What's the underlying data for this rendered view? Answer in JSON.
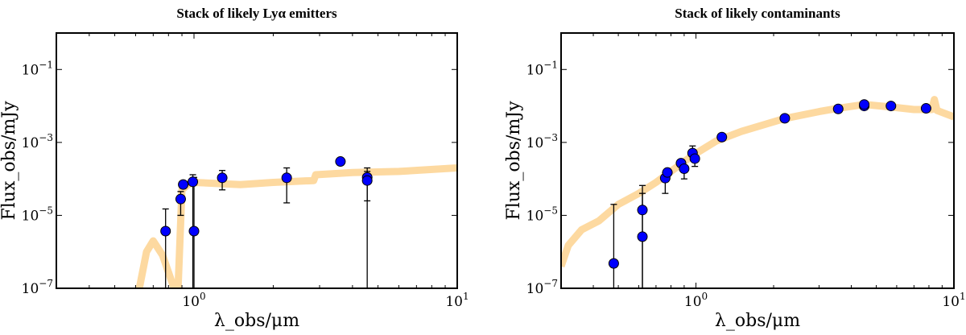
{
  "chart_data": [
    {
      "type": "scatter",
      "title": "Stack of likely Lyα emitters",
      "xlabel": "λ_obs/μm",
      "ylabel": "Flux_obs/mJy",
      "xscale": "log",
      "yscale": "log",
      "xlim": [
        0.3,
        10
      ],
      "ylim": [
        1e-07,
        1
      ],
      "xticks": [
        {
          "v": 1,
          "base": "10",
          "exp": "0"
        },
        {
          "v": 10,
          "base": "10",
          "exp": "1"
        }
      ],
      "yticks": [
        {
          "v": 1e-07,
          "base": "10",
          "exp": "−7"
        },
        {
          "v": 1e-05,
          "base": "10",
          "exp": "−5"
        },
        {
          "v": 0.001,
          "base": "10",
          "exp": "−3"
        },
        {
          "v": 0.1,
          "base": "10",
          "exp": "−1"
        }
      ],
      "points": [
        {
          "x": 0.78,
          "y": 3.7e-06,
          "lo": 1e-07,
          "hi": 1.5e-05
        },
        {
          "x": 0.89,
          "y": 2.8e-05,
          "lo": 1e-05,
          "hi": 4.5e-05
        },
        {
          "x": 0.91,
          "y": 7e-05,
          "lo": null,
          "hi": null
        },
        {
          "x": 0.99,
          "y": 8.3e-05,
          "lo": 1e-07,
          "hi": 0.00013
        },
        {
          "x": 1.0,
          "y": 3.7e-06,
          "lo": 1e-07,
          "hi": 0.00011
        },
        {
          "x": 1.28,
          "y": 0.000107,
          "lo": 5e-05,
          "hi": 0.00017
        },
        {
          "x": 2.25,
          "y": 0.000107,
          "lo": 2.2e-05,
          "hi": 0.0002
        },
        {
          "x": 3.6,
          "y": 0.0003,
          "lo": null,
          "hi": null
        },
        {
          "x": 4.55,
          "y": 0.00011,
          "lo": 2.5e-05,
          "hi": 0.0002
        },
        {
          "x": 4.55,
          "y": 9e-05,
          "lo": 1e-07,
          "hi": 0.00016
        }
      ],
      "model": [
        [
          0.62,
          1e-07
        ],
        [
          0.66,
          1e-06
        ],
        [
          0.7,
          2e-06
        ],
        [
          0.76,
          8e-07
        ],
        [
          0.84,
          1e-07
        ],
        [
          0.87,
          1e-07
        ],
        [
          0.9,
          5e-05
        ],
        [
          0.95,
          7e-05
        ],
        [
          1.0,
          8e-05
        ],
        [
          1.5,
          7e-05
        ],
        [
          2.0,
          8e-05
        ],
        [
          2.85,
          9e-05
        ],
        [
          2.9,
          0.00013
        ],
        [
          4.0,
          0.00015
        ],
        [
          6.0,
          0.00016
        ],
        [
          10,
          0.0002
        ]
      ],
      "model_color": "#fdd9a0",
      "point_color": "#0000ff"
    },
    {
      "type": "scatter",
      "title": "Stack of likely contaminants",
      "xlabel": "λ_obs/μm",
      "ylabel": "Flux_obs/mJy",
      "xscale": "log",
      "yscale": "log",
      "xlim": [
        0.3,
        10
      ],
      "ylim": [
        1e-07,
        1
      ],
      "xticks": [
        {
          "v": 1,
          "base": "10",
          "exp": "0"
        },
        {
          "v": 10,
          "base": "10",
          "exp": "1"
        }
      ],
      "yticks": [
        {
          "v": 1e-07,
          "base": "10",
          "exp": "−7"
        },
        {
          "v": 1e-05,
          "base": "10",
          "exp": "−5"
        },
        {
          "v": 0.001,
          "base": "10",
          "exp": "−3"
        },
        {
          "v": 0.1,
          "base": "10",
          "exp": "−1"
        }
      ],
      "points": [
        {
          "x": 0.48,
          "y": 4.8e-07,
          "lo": 1e-07,
          "hi": 2e-05
        },
        {
          "x": 0.62,
          "y": 1.4e-05,
          "lo": 1e-07,
          "hi": 6.6e-05
        },
        {
          "x": 0.62,
          "y": 2.6e-06,
          "lo": 1e-07,
          "hi": 4e-05
        },
        {
          "x": 0.76,
          "y": 0.000105,
          "lo": 4e-05,
          "hi": 0.00015
        },
        {
          "x": 0.775,
          "y": 0.00015,
          "lo": null,
          "hi": null
        },
        {
          "x": 0.875,
          "y": 0.00027,
          "lo": null,
          "hi": 0.00033
        },
        {
          "x": 0.9,
          "y": 0.00019,
          "lo": 0.0001,
          "hi": null
        },
        {
          "x": 0.97,
          "y": 0.00051,
          "lo": null,
          "hi": 0.0008
        },
        {
          "x": 0.99,
          "y": 0.00036,
          "lo": 0.00022,
          "hi": null
        },
        {
          "x": 1.26,
          "y": 0.0014,
          "lo": null,
          "hi": null
        },
        {
          "x": 2.21,
          "y": 0.0046,
          "lo": null,
          "hi": null
        },
        {
          "x": 3.56,
          "y": 0.0083,
          "lo": null,
          "hi": null
        },
        {
          "x": 4.49,
          "y": 0.01,
          "lo": null,
          "hi": null
        },
        {
          "x": 4.49,
          "y": 0.011,
          "lo": null,
          "hi": null
        },
        {
          "x": 5.7,
          "y": 0.01,
          "lo": null,
          "hi": null
        },
        {
          "x": 7.8,
          "y": 0.0086,
          "lo": null,
          "hi": null
        }
      ],
      "model": [
        [
          0.3,
          4e-07
        ],
        [
          0.32,
          1.5e-06
        ],
        [
          0.36,
          4e-06
        ],
        [
          0.42,
          7e-06
        ],
        [
          0.5,
          2e-05
        ],
        [
          0.6,
          4e-05
        ],
        [
          0.7,
          8e-05
        ],
        [
          0.8,
          0.00016
        ],
        [
          0.9,
          0.0003
        ],
        [
          1.0,
          0.0005
        ],
        [
          1.2,
          0.0011
        ],
        [
          1.5,
          0.002
        ],
        [
          2.2,
          0.0045
        ],
        [
          3.0,
          0.007
        ],
        [
          3.5,
          0.0085
        ],
        [
          4.5,
          0.011
        ],
        [
          6.0,
          0.009
        ],
        [
          7.0,
          0.008
        ],
        [
          8.2,
          0.008
        ],
        [
          8.4,
          0.015
        ],
        [
          8.6,
          0.0075
        ],
        [
          10,
          0.005
        ]
      ],
      "model_color": "#fdd9a0",
      "point_color": "#0000ff"
    }
  ]
}
